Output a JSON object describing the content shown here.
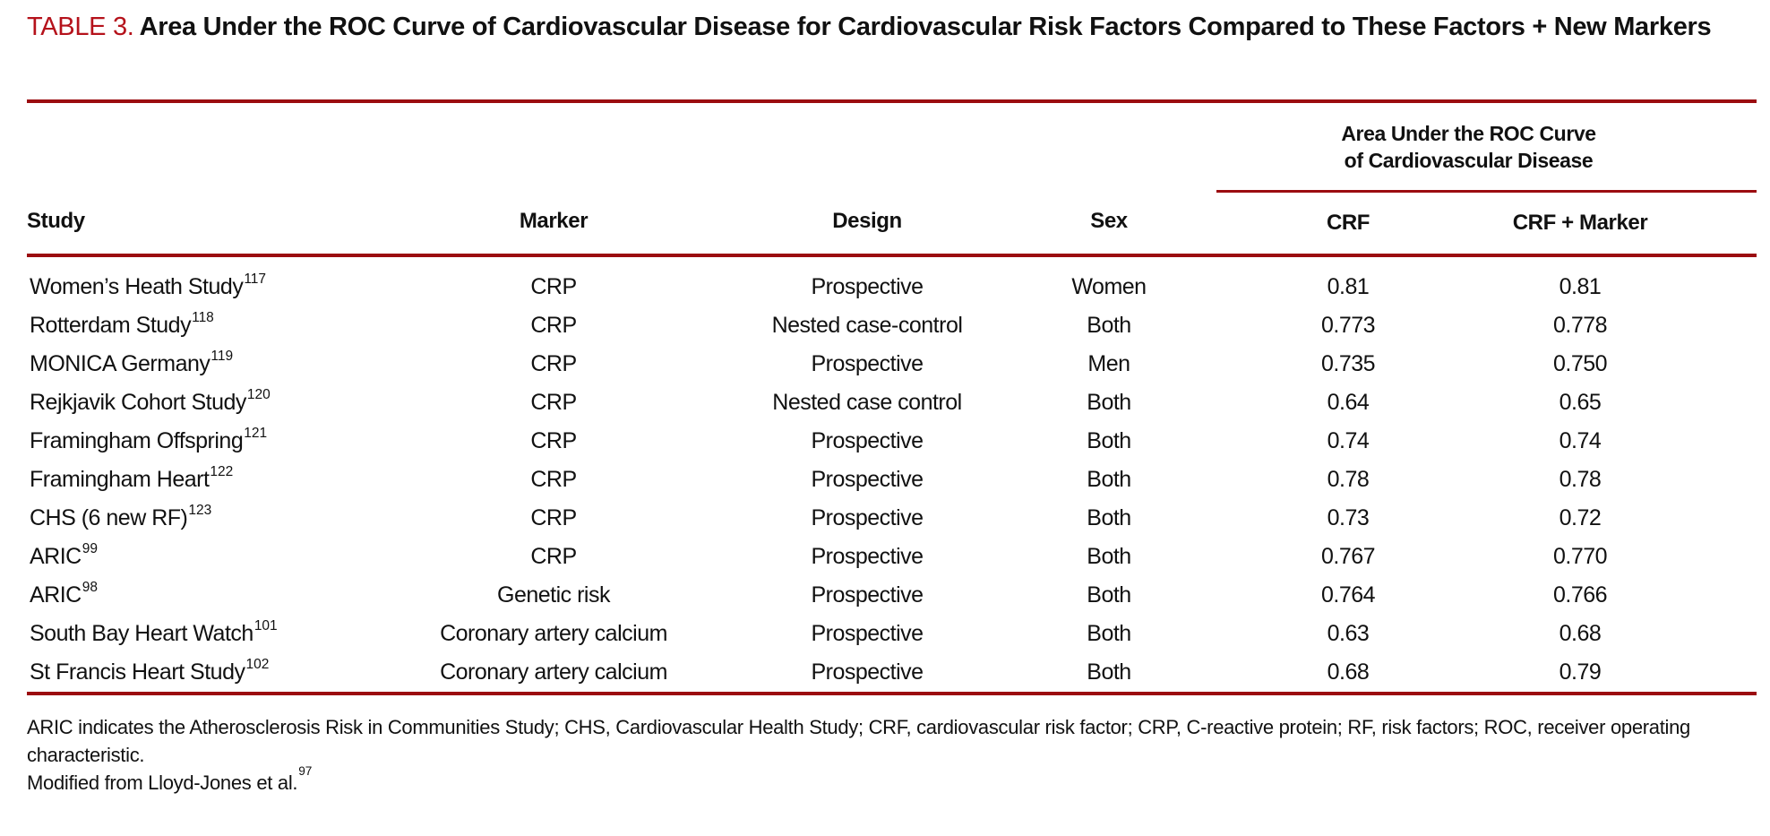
{
  "colors": {
    "label_red": "#B5121B",
    "rule_red": "#9B0C10",
    "ink": "#111111"
  },
  "table": {
    "label": "TABLE 3.",
    "title": "Area Under the ROC Curve of Cardiovascular Disease for Cardiovascular Risk Factors Compared to These Factors + New Markers",
    "headers": {
      "study": "Study",
      "marker": "Marker",
      "design": "Design",
      "sex": "Sex",
      "group_line1": "Area Under the ROC Curve",
      "group_line2": "of Cardiovascular Disease",
      "crf": "CRF",
      "crf_marker": "CRF + Marker"
    },
    "rows": [
      {
        "study": "Women’s Heath Study",
        "ref": "117",
        "marker": "CRP",
        "design": "Prospective",
        "sex": "Women",
        "crf": "0.81",
        "crf_marker": "0.81"
      },
      {
        "study": "Rotterdam Study",
        "ref": "118",
        "marker": "CRP",
        "design": "Nested case-control",
        "sex": "Both",
        "crf": "0.773",
        "crf_marker": "0.778"
      },
      {
        "study": "MONICA Germany",
        "ref": "119",
        "marker": "CRP",
        "design": "Prospective",
        "sex": "Men",
        "crf": "0.735",
        "crf_marker": "0.750"
      },
      {
        "study": "Rejkjavik Cohort Study",
        "ref": "120",
        "marker": "CRP",
        "design": "Nested case control",
        "sex": "Both",
        "crf": "0.64",
        "crf_marker": "0.65"
      },
      {
        "study": "Framingham Offspring",
        "ref": "121",
        "marker": "CRP",
        "design": "Prospective",
        "sex": "Both",
        "crf": "0.74",
        "crf_marker": "0.74"
      },
      {
        "study": "Framingham Heart",
        "ref": "122",
        "marker": "CRP",
        "design": "Prospective",
        "sex": "Both",
        "crf": "0.78",
        "crf_marker": "0.78"
      },
      {
        "study": "CHS (6 new RF)",
        "ref": "123",
        "marker": "CRP",
        "design": "Prospective",
        "sex": "Both",
        "crf": "0.73",
        "crf_marker": "0.72"
      },
      {
        "study": "ARIC",
        "ref": "99",
        "marker": "CRP",
        "design": "Prospective",
        "sex": "Both",
        "crf": "0.767",
        "crf_marker": "0.770"
      },
      {
        "study": "ARIC",
        "ref": "98",
        "marker": "Genetic risk",
        "design": "Prospective",
        "sex": "Both",
        "crf": "0.764",
        "crf_marker": "0.766"
      },
      {
        "study": "South Bay Heart Watch",
        "ref": "101",
        "marker": "Coronary artery calcium",
        "design": "Prospective",
        "sex": "Both",
        "crf": "0.63",
        "crf_marker": "0.68"
      },
      {
        "study": "St Francis Heart Study",
        "ref": "102",
        "marker": "Coronary artery calcium",
        "design": "Prospective",
        "sex": "Both",
        "crf": "0.68",
        "crf_marker": "0.79"
      }
    ],
    "footnotes": {
      "abbreviations": "ARIC indicates the Atherosclerosis Risk in Communities Study; CHS, Cardiovascular Health Study; CRF, cardiovascular risk factor; CRP, C-reactive protein; RF, risk factors; ROC, receiver operating characteristic.",
      "source": "Modified from Lloyd-Jones et al.",
      "source_ref": "97"
    }
  }
}
